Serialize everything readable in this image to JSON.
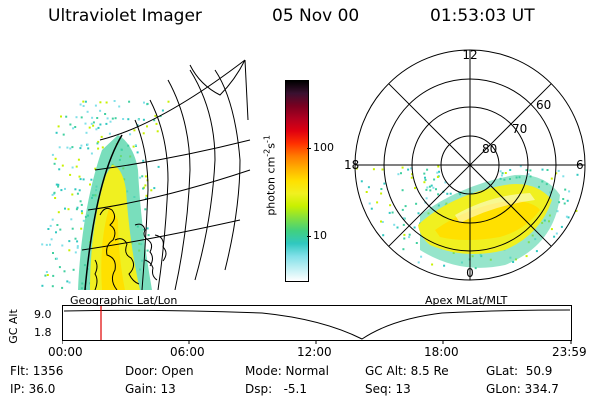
{
  "header": {
    "instrument": "Ultraviolet Imager",
    "date": "05 Nov 00",
    "time": "01:53:03 UT"
  },
  "colorbar": {
    "label_main": "photon cm",
    "label_sup1": "-2",
    "label_s": "s",
    "label_sup2": "-1",
    "ticks": [
      "100",
      "10"
    ],
    "colors": [
      "#000000",
      "#3a1030",
      "#7a0020",
      "#b00020",
      "#e00010",
      "#ff3000",
      "#ff7a00",
      "#ffb000",
      "#ffe000",
      "#f0f020",
      "#c8f000",
      "#80e040",
      "#40d080",
      "#30c8c0",
      "#80e0e8",
      "#c0f0f4",
      "#ffffff"
    ]
  },
  "map_left": {
    "label": "Geographic Lat/Lon"
  },
  "map_right": {
    "label": "Apex MLat/MLT",
    "mlt_labels": {
      "top": "12",
      "left": "18",
      "right": "6",
      "bottom": "0"
    },
    "lat_labels": [
      "60",
      "70",
      "80"
    ]
  },
  "alt_plot": {
    "ylabel": "GC Alt",
    "yticks": [
      "9.0",
      "1.8"
    ],
    "xticks": [
      "00:00",
      "06:00",
      "12:00",
      "18:00",
      "23:59"
    ],
    "marker_color": "#e00000"
  },
  "info": {
    "flt": "Flt: 1356",
    "ip": "IP: 36.0",
    "door": "Door: Open",
    "gain": "Gain: 13",
    "mode": "Mode: Normal",
    "dsp": "Dsp:   -5.1",
    "gcalt": "GC Alt: 8.5 Re",
    "seq": "Seq: 13",
    "glat": "GLat:  50.9",
    "glon": "GLon: 334.7"
  }
}
